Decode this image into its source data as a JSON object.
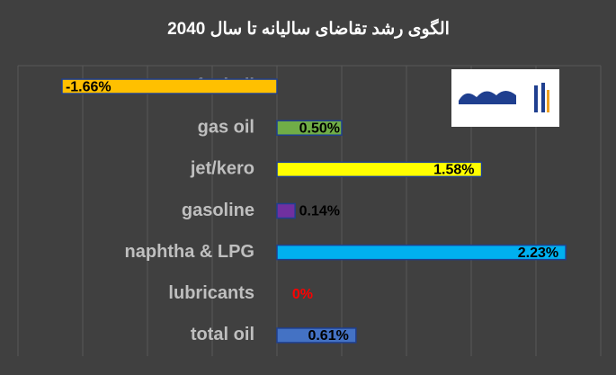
{
  "chart_data": {
    "type": "hbar",
    "title": "الگوی رشد تقاضای سالیانه تا سال 2040",
    "categories": [
      "fuel oil",
      "gas oil",
      "jet/kero",
      "gasoline",
      "naphtha & LPG",
      "lubricants",
      "total oil"
    ],
    "values": [
      -1.66,
      0.5,
      1.58,
      0.14,
      2.23,
      0,
      0.61
    ],
    "value_labels": [
      "-1.66%",
      "0.50%",
      "1.58%",
      "0.14%",
      "2.23%",
      "0%",
      "0.61%"
    ],
    "colors": [
      "#ffc000",
      "#70ad47",
      "#ffff00",
      "#7030a0",
      "#00b0f0",
      "#404040",
      "#4472c4"
    ],
    "value_label_colors": [
      "#000000",
      "#000000",
      "#000000",
      "#000000",
      "#000000",
      "#ff0000",
      "#000000"
    ],
    "xlim": [
      -2,
      2.5
    ],
    "xticks": [
      -2,
      -1.5,
      -1,
      -0.5,
      0,
      0.5,
      1,
      1.5,
      2,
      2.5
    ],
    "grid": true
  }
}
